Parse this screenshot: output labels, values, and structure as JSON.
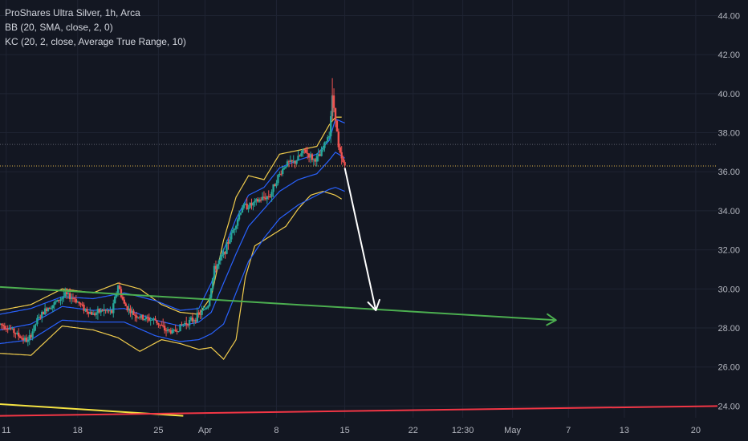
{
  "legend": {
    "symbol": "ProShares Ultra Silver, 1h, Arca",
    "bb": "BB (20, SMA, close, 2, 0)",
    "kc": "KC (20, 2, close, Average True Range, 10)"
  },
  "colors": {
    "background": "#131722",
    "grid": "#1f2433",
    "axis_text": "#b2b5be",
    "up": "#26a69a",
    "down": "#ef5350",
    "bb_band": "#f2cd4d",
    "kc_band": "#2962ff",
    "green_trendline": "#4caf50",
    "red_trendline": "#f23645",
    "yellow_line": "#f5e342",
    "arrow": "#ffffff",
    "price_line": "#e0b44a"
  },
  "chart_data": {
    "type": "candlestick",
    "title": "ProShares Ultra Silver, 1h, Arca",
    "ylim": [
      23.4,
      44.8
    ],
    "y_ticks": [
      "44.00",
      "42.00",
      "40.00",
      "38.00",
      "36.00",
      "34.00",
      "32.00",
      "30.00",
      "28.00",
      "26.00",
      "24.00"
    ],
    "y_tick_values": [
      44,
      42,
      40,
      38,
      36,
      34,
      32,
      30,
      28,
      26,
      24
    ],
    "x_index_range": [
      0,
      231
    ],
    "x_ticks": [
      {
        "label": "11",
        "index": 2
      },
      {
        "label": "18",
        "index": 25
      },
      {
        "label": "25",
        "index": 51
      },
      {
        "label": "Apr",
        "index": 66
      },
      {
        "label": "8",
        "index": 89
      },
      {
        "label": "15",
        "index": 111
      },
      {
        "label": "22",
        "index": 133
      },
      {
        "label": "12:30",
        "index": 149
      },
      {
        "label": "May",
        "index": 165
      },
      {
        "label": "7",
        "index": 183
      },
      {
        "label": "13",
        "index": 201
      },
      {
        "label": "20",
        "index": 224
      }
    ],
    "grid": true,
    "price_series_anchors": [
      [
        0,
        28.2
      ],
      [
        3,
        28.0
      ],
      [
        6,
        27.6
      ],
      [
        9,
        27.3
      ],
      [
        12,
        28.4
      ],
      [
        15,
        29.0
      ],
      [
        18,
        29.3
      ],
      [
        21,
        29.7
      ],
      [
        24,
        29.5
      ],
      [
        27,
        29.0
      ],
      [
        30,
        28.7
      ],
      [
        33,
        28.9
      ],
      [
        36,
        28.8
      ],
      [
        38,
        30.2
      ],
      [
        40,
        29.2
      ],
      [
        43,
        28.7
      ],
      [
        46,
        28.5
      ],
      [
        50,
        28.4
      ],
      [
        53,
        27.9
      ],
      [
        56,
        27.8
      ],
      [
        59,
        28.2
      ],
      [
        62,
        28.4
      ],
      [
        65,
        28.8
      ],
      [
        67,
        29.2
      ],
      [
        69,
        31.0
      ],
      [
        72,
        31.8
      ],
      [
        75,
        33.0
      ],
      [
        78,
        34.2
      ],
      [
        81,
        34.3
      ],
      [
        84,
        34.6
      ],
      [
        87,
        34.8
      ],
      [
        89,
        35.6
      ],
      [
        92,
        36.4
      ],
      [
        95,
        36.5
      ],
      [
        98,
        37.1
      ],
      [
        101,
        36.6
      ],
      [
        103,
        36.8
      ],
      [
        106,
        38.0
      ],
      [
        107,
        39.8
      ],
      [
        108,
        38.8
      ],
      [
        109,
        37.2
      ],
      [
        110,
        36.6
      ],
      [
        111,
        36.3
      ]
    ],
    "bollinger_bands": {
      "name": "BB (20, SMA, close, 2, 0)",
      "upper": [
        [
          0,
          28.9
        ],
        [
          10,
          29.2
        ],
        [
          20,
          30.0
        ],
        [
          30,
          29.8
        ],
        [
          38,
          30.3
        ],
        [
          45,
          30.0
        ],
        [
          52,
          29.2
        ],
        [
          58,
          28.8
        ],
        [
          64,
          28.7
        ],
        [
          68,
          29.6
        ],
        [
          72,
          32.5
        ],
        [
          76,
          34.7
        ],
        [
          80,
          35.8
        ],
        [
          85,
          35.6
        ],
        [
          90,
          36.9
        ],
        [
          96,
          37.1
        ],
        [
          102,
          37.3
        ],
        [
          106,
          38.4
        ],
        [
          108,
          38.8
        ],
        [
          110,
          38.8
        ]
      ],
      "lower": [
        [
          0,
          26.7
        ],
        [
          10,
          26.6
        ],
        [
          20,
          28.1
        ],
        [
          30,
          27.9
        ],
        [
          38,
          27.5
        ],
        [
          45,
          26.8
        ],
        [
          52,
          27.4
        ],
        [
          58,
          27.2
        ],
        [
          64,
          26.9
        ],
        [
          68,
          27.0
        ],
        [
          72,
          26.4
        ],
        [
          76,
          27.4
        ],
        [
          79,
          30.6
        ],
        [
          82,
          32.2
        ],
        [
          87,
          32.7
        ],
        [
          92,
          33.2
        ],
        [
          96,
          34.1
        ],
        [
          100,
          34.8
        ],
        [
          104,
          35.0
        ],
        [
          108,
          34.8
        ],
        [
          110,
          34.6
        ]
      ]
    },
    "keltner_channels": {
      "name": "KC (20, 2, close, Average True Range, 10)",
      "upper": [
        [
          0,
          28.7
        ],
        [
          10,
          29.0
        ],
        [
          20,
          29.6
        ],
        [
          30,
          29.5
        ],
        [
          40,
          29.8
        ],
        [
          50,
          29.4
        ],
        [
          58,
          28.9
        ],
        [
          64,
          29.0
        ],
        [
          68,
          30.3
        ],
        [
          72,
          32.0
        ],
        [
          76,
          33.6
        ],
        [
          80,
          34.8
        ],
        [
          85,
          35.2
        ],
        [
          90,
          36.2
        ],
        [
          96,
          36.6
        ],
        [
          102,
          36.9
        ],
        [
          106,
          37.6
        ],
        [
          108,
          38.7
        ],
        [
          111,
          38.5
        ]
      ],
      "middle": [
        [
          0,
          27.9
        ],
        [
          10,
          28.2
        ],
        [
          20,
          29.1
        ],
        [
          30,
          28.9
        ],
        [
          40,
          29.0
        ],
        [
          50,
          28.4
        ],
        [
          58,
          28.1
        ],
        [
          64,
          28.3
        ],
        [
          68,
          28.8
        ],
        [
          72,
          30.3
        ],
        [
          76,
          31.8
        ],
        [
          80,
          33.2
        ],
        [
          85,
          34.1
        ],
        [
          90,
          35.0
        ],
        [
          96,
          35.6
        ],
        [
          102,
          35.9
        ],
        [
          106,
          36.6
        ],
        [
          108,
          37.0
        ],
        [
          111,
          36.7
        ]
      ],
      "lower": [
        [
          0,
          27.2
        ],
        [
          10,
          27.4
        ],
        [
          20,
          28.4
        ],
        [
          30,
          28.3
        ],
        [
          40,
          28.3
        ],
        [
          50,
          27.6
        ],
        [
          58,
          27.3
        ],
        [
          64,
          27.4
        ],
        [
          68,
          27.7
        ],
        [
          72,
          28.2
        ],
        [
          76,
          29.8
        ],
        [
          80,
          31.4
        ],
        [
          85,
          32.6
        ],
        [
          90,
          33.6
        ],
        [
          96,
          34.3
        ],
        [
          102,
          34.8
        ],
        [
          106,
          35.1
        ],
        [
          108,
          35.2
        ],
        [
          111,
          35.0
        ]
      ]
    },
    "reference_lines": {
      "current_price": 36.3,
      "dotted_high": 37.4
    },
    "drawings": {
      "green_trendline": {
        "start": [
          0,
          30.1
        ],
        "end": [
          179,
          28.4
        ]
      },
      "red_trendline": {
        "start": [
          0,
          23.5
        ],
        "end": [
          231,
          24.0
        ]
      },
      "yellow_line": {
        "start": [
          0,
          24.1
        ],
        "end": [
          59,
          23.5
        ]
      },
      "down_arrow": {
        "start": [
          111,
          36.2
        ],
        "end": [
          121,
          28.9
        ]
      }
    }
  }
}
